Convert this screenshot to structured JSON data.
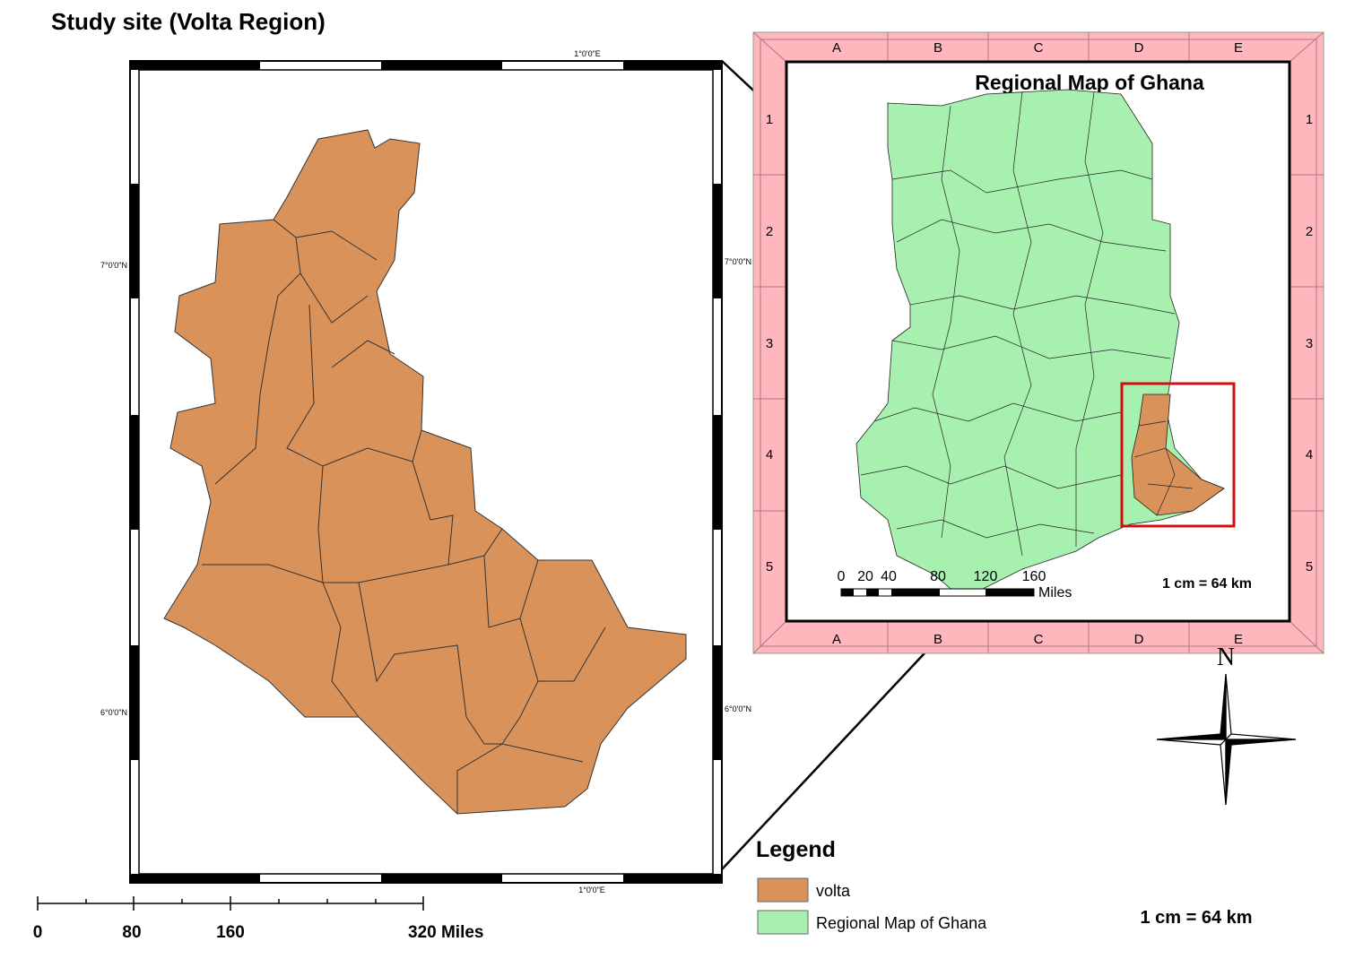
{
  "main_map": {
    "title": "Study site  (Volta Region)",
    "graticule": {
      "top": "1°0'0\"E",
      "bottom": "1°0'0\"E",
      "left": [
        "7°0'0\"N",
        "6°0'0\"N"
      ],
      "right": [
        "7°0'0\"N",
        "6°0'0\"N"
      ]
    }
  },
  "scale_bar": {
    "labels": [
      "0",
      "80",
      "160",
      "320 Miles"
    ]
  },
  "inset": {
    "title": "Regional Map of Ghana",
    "columns": [
      "A",
      "B",
      "C",
      "D",
      "E"
    ],
    "rows": [
      "1",
      "2",
      "3",
      "4",
      "5"
    ],
    "scale_bar": {
      "labels": [
        "0",
        "20",
        "40",
        "80",
        "120",
        "160"
      ],
      "unit": "Miles"
    },
    "scale_text": "1 cm = 64 km"
  },
  "legend": {
    "title": "Legend",
    "items": [
      {
        "label": "volta",
        "color": "#d9925a"
      },
      {
        "label": "Regional Map of Ghana",
        "color": "#a8f0b0"
      }
    ]
  },
  "scale_text": "1 cm = 64 km",
  "north": "N"
}
